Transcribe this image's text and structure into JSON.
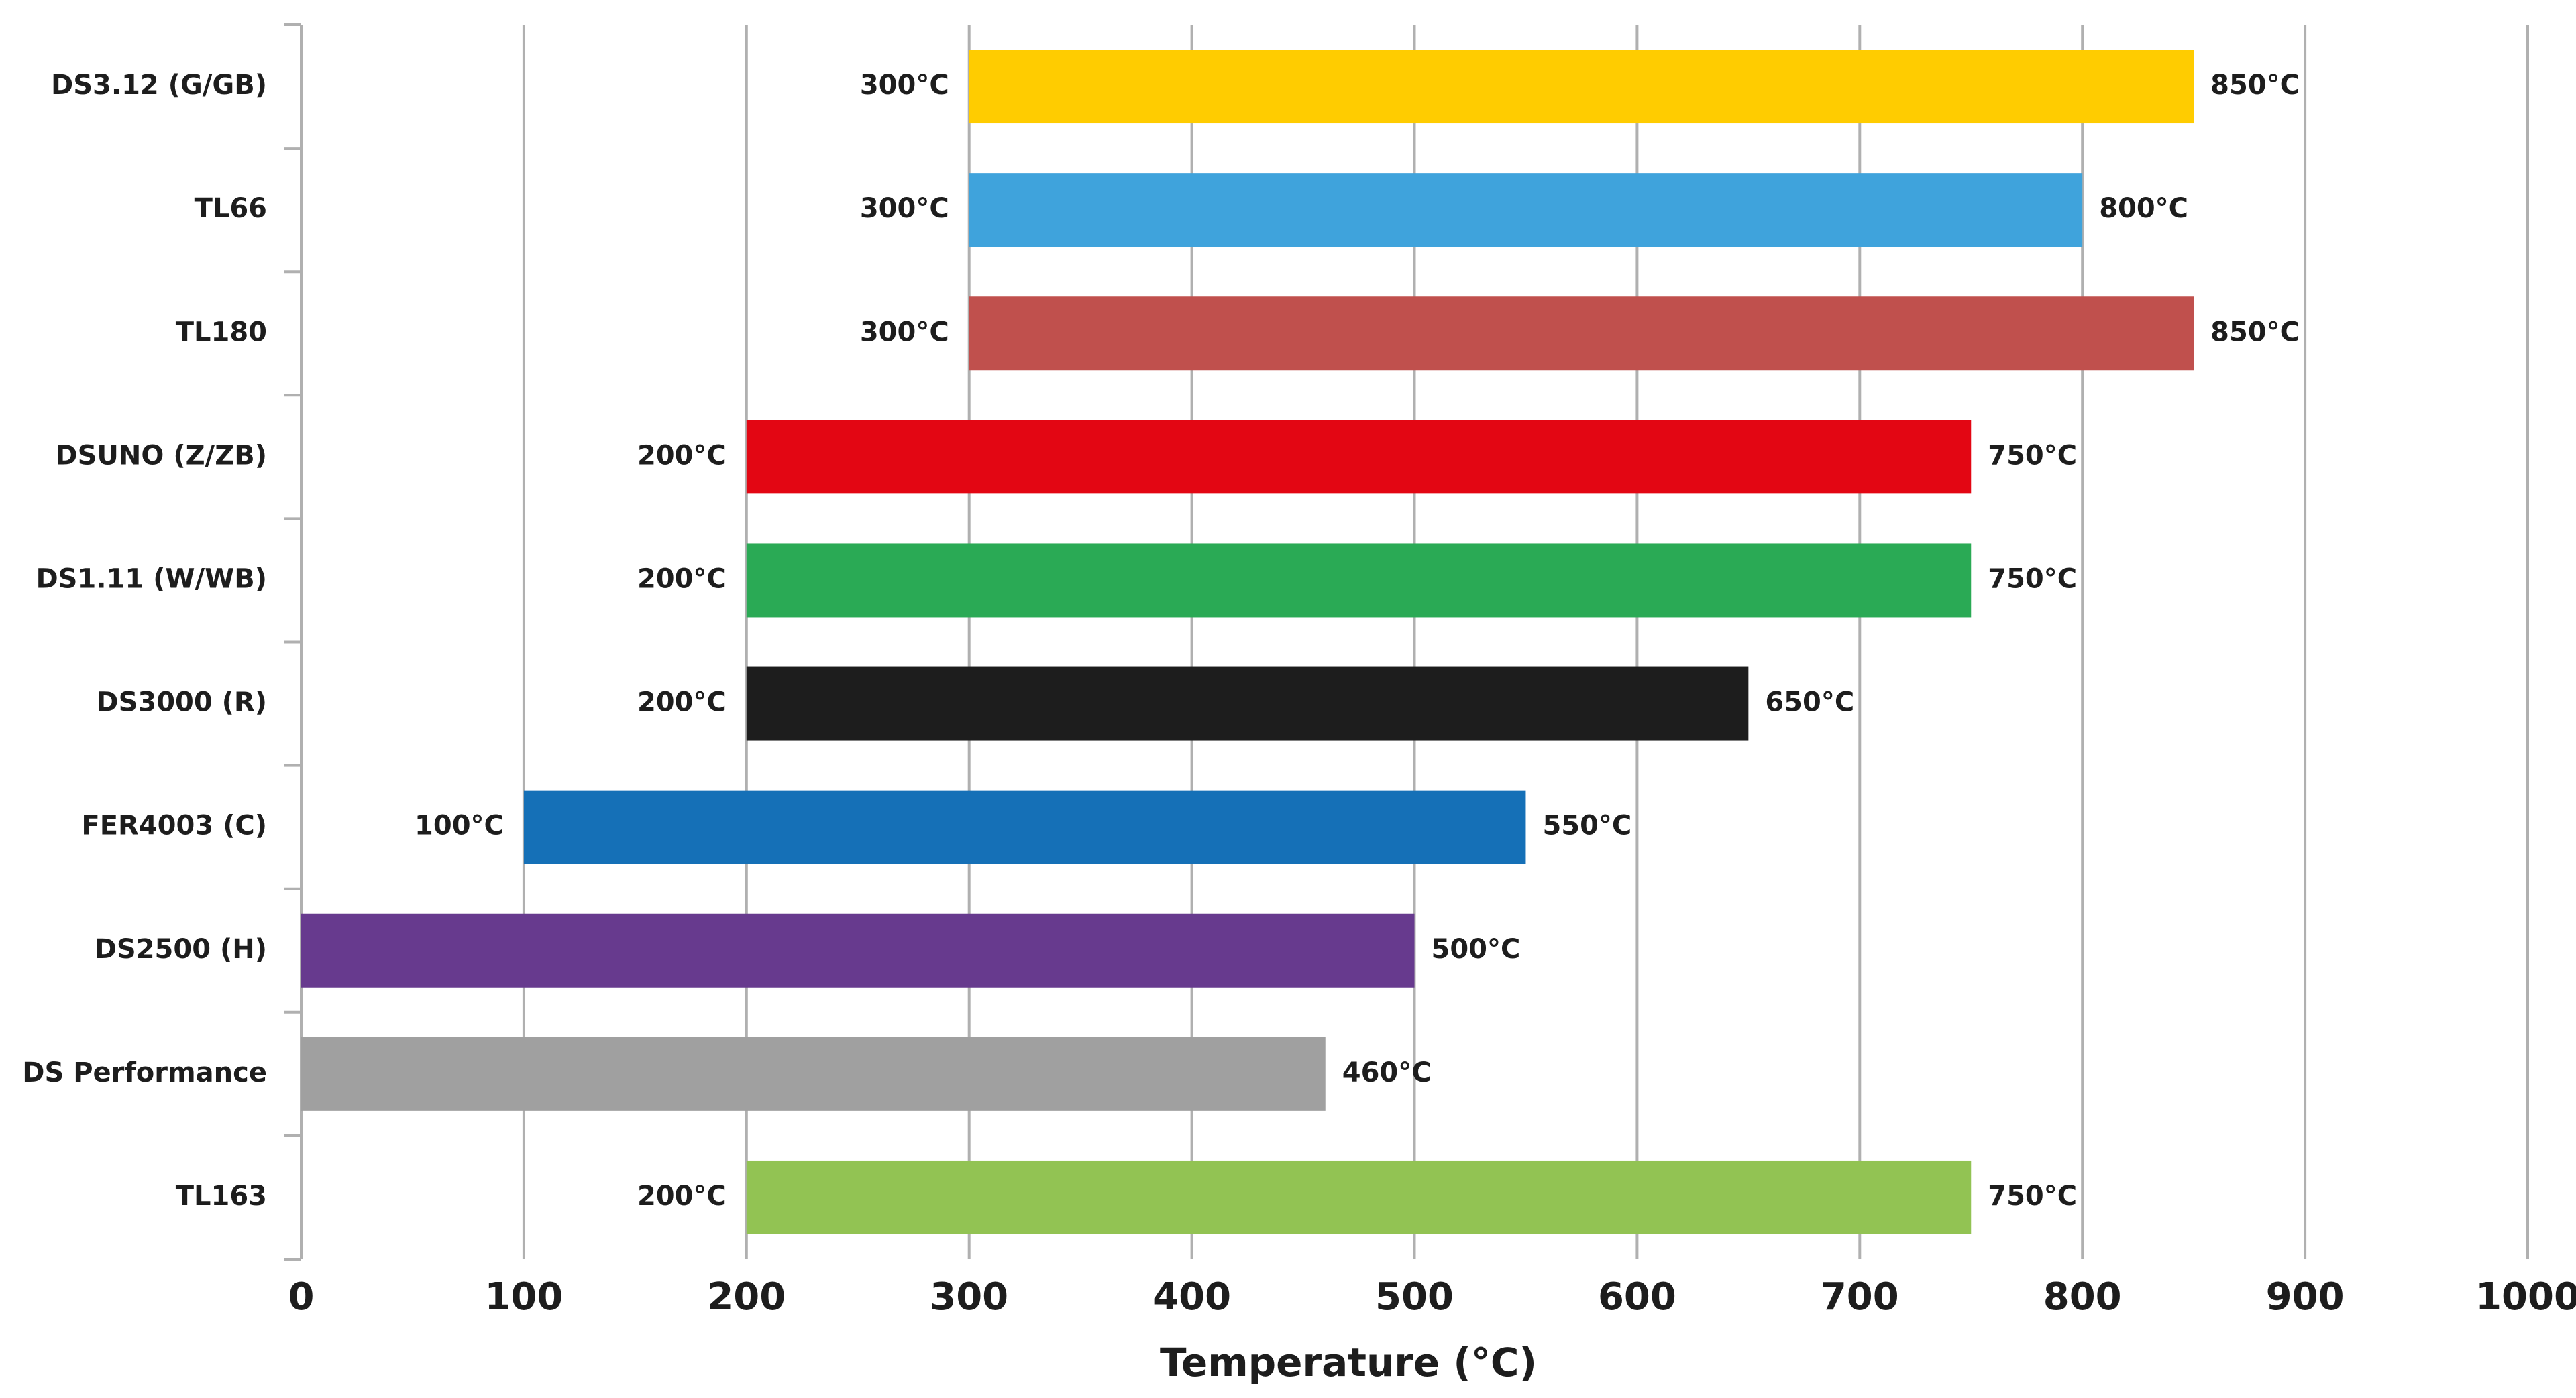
{
  "chart_data": {
    "type": "range_bar",
    "x_label": "Temperature (°C)",
    "categories": [
      "DS3.12 (G/GB)",
      "TL66",
      "TL180",
      "DSUNO (Z/ZB)",
      "DS1.11 (W/WB)",
      "DS3000 (R)",
      "FER4003 (C)",
      "DS2500 (H)",
      "DS Performance",
      "TL163"
    ],
    "low": [
      300,
      300,
      300,
      200,
      200,
      200,
      100,
      0,
      0,
      200
    ],
    "low_labels": [
      "300°C",
      "300°C",
      "300°C",
      "200°C",
      "200°C",
      "200°C",
      "100°C",
      null,
      null,
      "200°C"
    ],
    "values": [
      850,
      800,
      850,
      750,
      750,
      650,
      550,
      500,
      460,
      750
    ],
    "value_labels": [
      "850°C",
      "800°C",
      "850°C",
      "750°C",
      "750°C",
      "650°C",
      "550°C",
      "500°C",
      "460°C",
      "750°C"
    ],
    "colors": [
      "#ffcc00",
      "#3fa3dc",
      "#c0504d",
      "#e30613",
      "#2aaa55",
      "#1d1d1d",
      "#1570b7",
      "#673a8e",
      "#a0a0a0",
      "#92c353"
    ],
    "xlim": [
      0,
      1000
    ],
    "xticks": [
      0,
      100,
      200,
      300,
      400,
      500,
      600,
      700,
      800,
      900,
      1000
    ],
    "grid": true
  }
}
